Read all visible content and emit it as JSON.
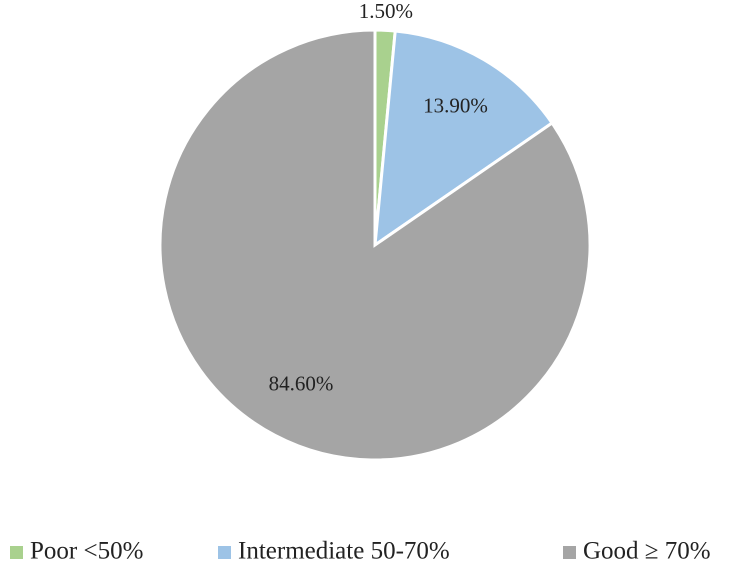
{
  "chart_data": {
    "type": "pie",
    "categories": [
      "Poor <50%",
      "Intermediate 50-70%",
      "Good ≥ 70%"
    ],
    "values": [
      1.5,
      13.9,
      84.6
    ],
    "value_labels": [
      "1.50%",
      "13.90%",
      "84.60%"
    ],
    "colors": [
      "#a9d18e",
      "#9dc3e6",
      "#a5a5a5"
    ],
    "legend": "bottom"
  }
}
